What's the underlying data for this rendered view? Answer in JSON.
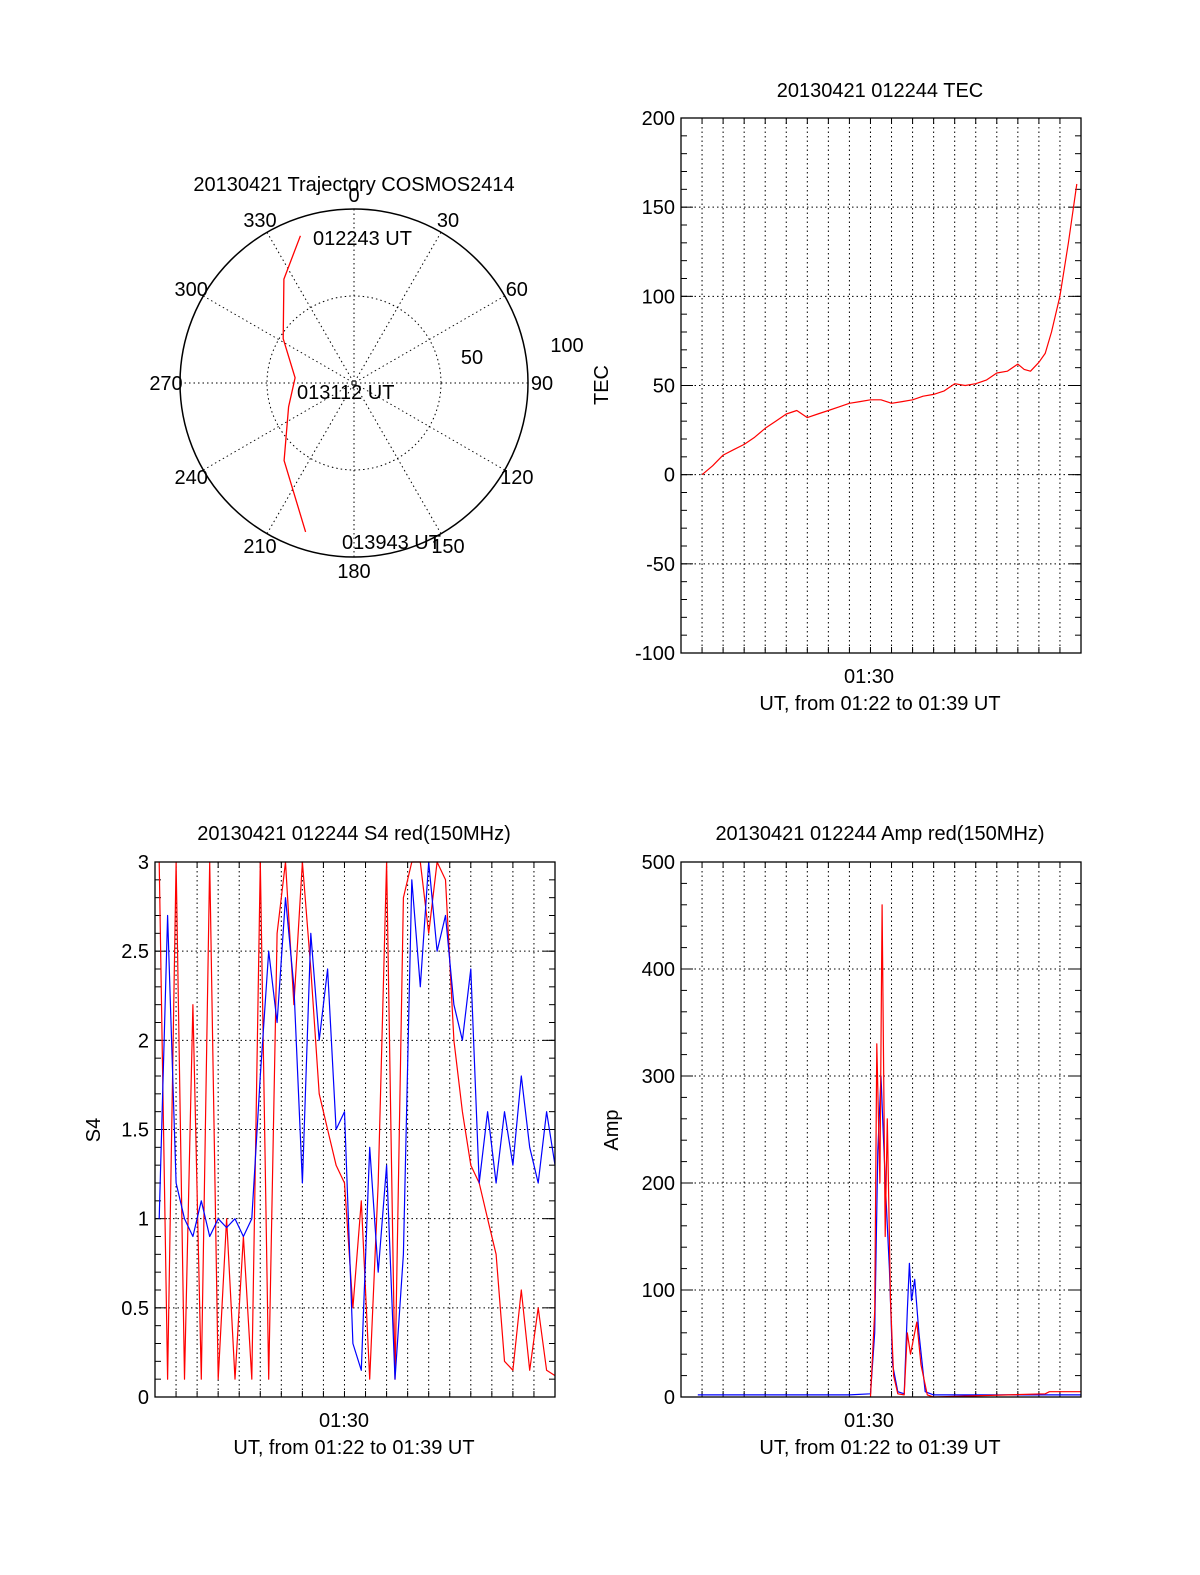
{
  "colors": {
    "red": "#ff0000",
    "blue": "#0000ff",
    "axis": "#000000"
  },
  "chart_data": [
    {
      "id": "trajectory",
      "type": "polar",
      "title": "20130421 Trajectory COSMOS2414",
      "angle_labels": [
        "0",
        "30",
        "60",
        "90",
        "120",
        "150",
        "180",
        "210",
        "240",
        "270",
        "300",
        "330"
      ],
      "radius_labels": [
        "50",
        "100"
      ],
      "rlim": [
        0,
        100
      ],
      "annotations": [
        "012243 UT",
        "013112 UT",
        "013943 UT"
      ],
      "track": {
        "color": "#ff0000",
        "points": [
          {
            "az": 340,
            "r": 90
          },
          {
            "az": 326,
            "r": 72
          },
          {
            "az": 302,
            "r": 48
          },
          {
            "az": 275,
            "r": 34
          },
          {
            "az": 250,
            "r": 40
          },
          {
            "az": 222,
            "r": 60
          },
          {
            "az": 198,
            "r": 90
          }
        ]
      }
    },
    {
      "id": "tec",
      "type": "line",
      "title": "20130421 012244 TEC",
      "ylabel": "TEC",
      "xlabel": "UT, from 01:22 to 01:39 UT",
      "x_tick_labels": [
        "01:30"
      ],
      "x_tick_minutes": [
        90
      ],
      "xlim": [
        81,
        100
      ],
      "ylim": [
        -100,
        200
      ],
      "y_ticks": [
        -100,
        -50,
        0,
        50,
        100,
        150,
        200
      ],
      "grid": true,
      "series": [
        {
          "color": "#ff0000",
          "x": [
            82,
            82.5,
            83,
            83.5,
            84,
            84.5,
            85,
            85.5,
            86,
            86.5,
            87,
            87.5,
            88,
            88.5,
            89,
            89.5,
            90,
            90.5,
            91,
            91.5,
            92,
            92.5,
            93,
            93.5,
            94,
            94.5,
            95,
            95.5,
            96,
            96.5,
            97,
            97.3,
            97.6,
            98,
            98.3,
            98.6,
            99,
            99.4,
            99.8
          ],
          "y": [
            0,
            5,
            11,
            14,
            17,
            21,
            26,
            30,
            34,
            36,
            32,
            34,
            36,
            38,
            40,
            41,
            42,
            42,
            40,
            41,
            42,
            44,
            45,
            47,
            51,
            50,
            51,
            53,
            57,
            58,
            62,
            59,
            58,
            63,
            68,
            80,
            100,
            130,
            163
          ]
        }
      ]
    },
    {
      "id": "s4",
      "type": "line",
      "title": "20130421 012244 S4 red(150MHz)",
      "ylabel": "S4",
      "xlabel": "UT, from 01:22 to 01:39 UT",
      "x_tick_labels": [
        "01:30"
      ],
      "x_tick_minutes": [
        90
      ],
      "xlim": [
        81,
        100
      ],
      "ylim": [
        0,
        3
      ],
      "y_ticks": [
        0,
        0.5,
        1,
        1.5,
        2,
        2.5,
        3
      ],
      "grid": true,
      "series": [
        {
          "color": "#ff0000",
          "x": [
            81.2,
            81.6,
            82.0,
            82.4,
            82.8,
            83.2,
            83.6,
            84.0,
            84.4,
            84.8,
            85.2,
            85.6,
            86.0,
            86.4,
            86.8,
            87.2,
            87.6,
            88.0,
            88.4,
            88.8,
            89.2,
            89.6,
            90.0,
            90.4,
            90.8,
            91.2,
            91.6,
            92.0,
            92.4,
            92.8,
            93.2,
            93.6,
            94.0,
            94.4,
            94.8,
            95.2,
            95.6,
            96.0,
            96.4,
            96.8,
            97.2,
            97.6,
            98.0,
            98.4,
            98.8,
            99.2,
            99.6,
            100.0
          ],
          "y": [
            3.0,
            0.1,
            3.0,
            0.1,
            2.2,
            0.1,
            3.0,
            0.1,
            1.0,
            0.1,
            0.9,
            0.1,
            3.0,
            0.1,
            2.6,
            3.0,
            2.2,
            3.0,
            2.4,
            1.7,
            1.5,
            1.3,
            1.2,
            0.5,
            1.1,
            0.1,
            1.2,
            3.0,
            0.1,
            2.8,
            3.0,
            3.0,
            2.6,
            3.0,
            2.9,
            2.0,
            1.6,
            1.3,
            1.2,
            1.0,
            0.8,
            0.2,
            0.15,
            0.6,
            0.15,
            0.5,
            0.15,
            0.12
          ]
        },
        {
          "color": "#0000ff",
          "x": [
            81.2,
            81.6,
            82.0,
            82.4,
            82.8,
            83.2,
            83.6,
            84.0,
            84.4,
            84.8,
            85.2,
            85.6,
            86.0,
            86.4,
            86.8,
            87.2,
            87.6,
            88.0,
            88.4,
            88.8,
            89.2,
            89.6,
            90.0,
            90.4,
            90.8,
            91.2,
            91.6,
            92.0,
            92.4,
            92.8,
            93.2,
            93.6,
            94.0,
            94.4,
            94.8,
            95.2,
            95.6,
            96.0,
            96.4,
            96.8,
            97.2,
            97.6,
            98.0,
            98.4,
            98.8,
            99.2,
            99.6,
            100.0
          ],
          "y": [
            1.0,
            2.7,
            1.2,
            1.0,
            0.9,
            1.1,
            0.9,
            1.0,
            0.95,
            1.0,
            0.9,
            1.0,
            1.8,
            2.5,
            2.1,
            2.8,
            2.3,
            1.2,
            2.6,
            2.0,
            2.4,
            1.5,
            1.6,
            0.3,
            0.15,
            1.4,
            0.7,
            1.3,
            0.1,
            0.8,
            2.9,
            2.3,
            3.0,
            2.5,
            2.7,
            2.2,
            2.0,
            2.4,
            1.2,
            1.6,
            1.2,
            1.6,
            1.3,
            1.8,
            1.4,
            1.2,
            1.6,
            1.3
          ]
        }
      ]
    },
    {
      "id": "amp",
      "type": "line",
      "title": "20130421 012244 Amp red(150MHz)",
      "ylabel": "Amp",
      "xlabel": "UT, from 01:22 to 01:39 UT",
      "x_tick_labels": [
        "01:30"
      ],
      "x_tick_minutes": [
        90
      ],
      "xlim": [
        81,
        100
      ],
      "ylim": [
        0,
        500
      ],
      "y_ticks": [
        0,
        100,
        200,
        300,
        400,
        500
      ],
      "grid": true,
      "series": [
        {
          "color": "#0000ff",
          "x": [
            81.8,
            83,
            85,
            87,
            89,
            90.0,
            90.2,
            90.35,
            90.5,
            90.6,
            90.75,
            90.9,
            91.05,
            91.3,
            91.6,
            91.75,
            91.85,
            91.95,
            92.1,
            92.3,
            92.6,
            93,
            95,
            97,
            98.3,
            100
          ],
          "y": [
            2,
            2,
            2,
            2,
            2,
            3,
            60,
            230,
            300,
            250,
            180,
            120,
            30,
            5,
            3,
            80,
            125,
            90,
            110,
            60,
            5,
            2,
            2,
            2,
            2,
            2
          ]
        },
        {
          "color": "#ff0000",
          "x": [
            90.0,
            90.2,
            90.3,
            90.45,
            90.55,
            90.7,
            90.8,
            90.95,
            91.1,
            91.3,
            91.6,
            91.75,
            91.9,
            92.05,
            92.2,
            92.4,
            92.7,
            93,
            98.3,
            98.5,
            100
          ],
          "y": [
            0,
            80,
            330,
            200,
            460,
            150,
            260,
            90,
            20,
            3,
            2,
            60,
            40,
            55,
            70,
            30,
            2,
            0,
            3,
            5,
            5
          ]
        }
      ]
    }
  ]
}
